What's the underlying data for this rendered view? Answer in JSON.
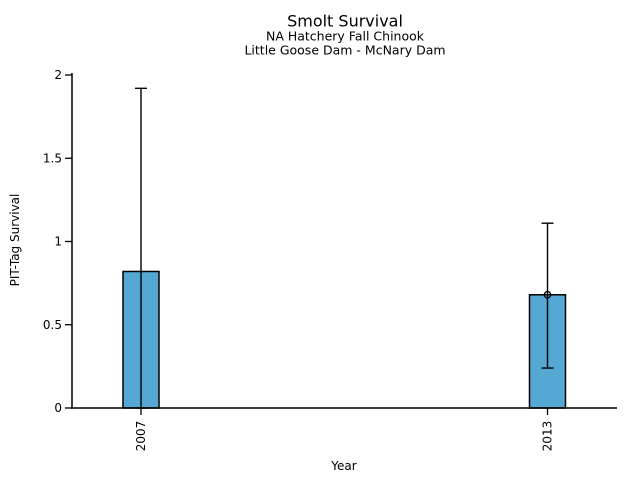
{
  "chart_data": {
    "type": "bar",
    "title": "Smolt Survival",
    "subtitle_line1": "NA Hatchery Fall Chinook",
    "subtitle_line2": "Little Goose Dam - McNary Dam",
    "xlabel": "Year",
    "ylabel": "PIT-Tag Survival",
    "categories": [
      "2007",
      "2013"
    ],
    "values": [
      0.82,
      0.68
    ],
    "error_low": [
      0.0,
      0.24
    ],
    "error_high": [
      1.92,
      1.11
    ],
    "point_marker": [
      false,
      true
    ],
    "y_ticks": [
      "0",
      "0.5",
      "1",
      "1.5",
      "2"
    ],
    "ylim": [
      0,
      2
    ],
    "grid": false,
    "legend": "none",
    "bar_color": "#56A8D4",
    "bar_edge_color": "#000000",
    "axis_color": "#000000",
    "background_color": "#FFFFFF"
  }
}
